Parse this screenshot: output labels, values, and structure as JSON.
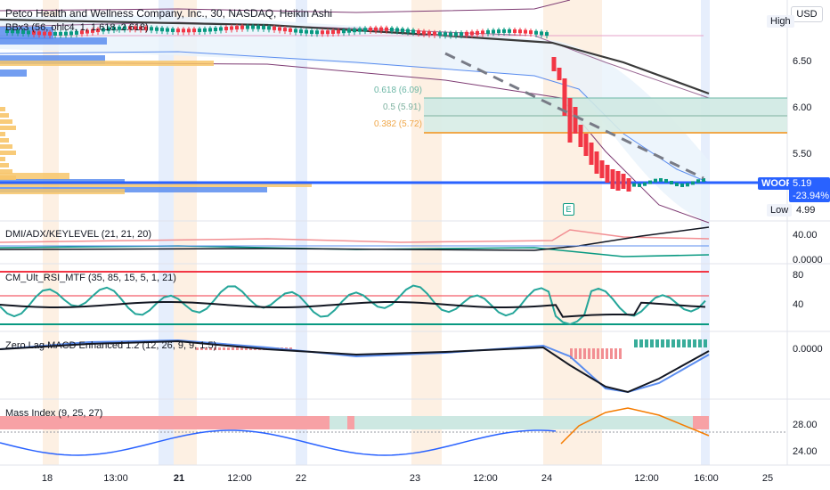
{
  "header": {
    "title": "Petco Health and Wellness Company, Inc., 30, NASDAQ, Heikin Ashi",
    "indicator": "BBx3 (56, ohlc4, 1, 1.618, 2.618)"
  },
  "currency": "USD",
  "price_axis": {
    "high_label": "High",
    "low_label": "Low",
    "low_value": "4.99",
    "ticks": [
      "6.50",
      "6.00",
      "5.50"
    ],
    "current": {
      "symbol": "WOOF",
      "price": "5.19",
      "change": "-23.94%"
    }
  },
  "fib": {
    "l618": "0.618 (6.09)",
    "l5": "0.5 (5.91)",
    "l382": "0.382 (5.72)"
  },
  "earnings_marker": "E",
  "panes": {
    "dmi": {
      "title": "DMI/ADX/KEYLEVEL (21, 21, 20)",
      "ticks": [
        "40.00",
        "0.0000"
      ]
    },
    "rsi": {
      "title": "CM_Ult_RSI_MTF (35, 85, 15, 5, 1, 21)",
      "ticks": [
        "80",
        "40"
      ]
    },
    "macd": {
      "title": "Zero Lag MACD Enhanced 1.2 (12, 26, 9, 9, 1.5)",
      "ticks": [
        "0.0000"
      ]
    },
    "mass": {
      "title": "Mass Index (9, 25, 27)",
      "ticks": [
        "28.00",
        "24.00"
      ]
    }
  },
  "time_axis": [
    "18",
    "13:00",
    "21",
    "12:00",
    "22",
    "23",
    "12:00",
    "24",
    "12:00",
    "16:00",
    "25"
  ],
  "colors": {
    "up": "#089981",
    "down": "#f23645",
    "accent": "#2962ff"
  }
}
